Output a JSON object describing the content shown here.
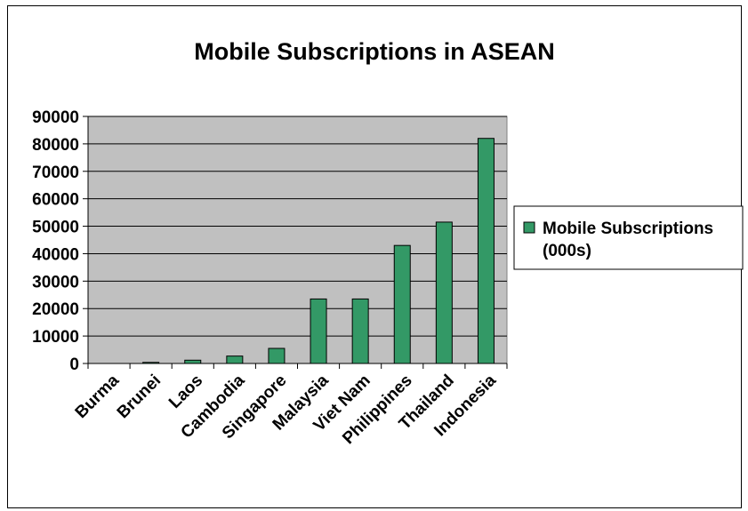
{
  "chart_data": {
    "type": "bar",
    "title": "Mobile Subscriptions in ASEAN",
    "xlabel": "",
    "ylabel": "",
    "ylim": [
      0,
      90000
    ],
    "yticks": [
      0,
      10000,
      20000,
      30000,
      40000,
      50000,
      60000,
      70000,
      80000,
      90000
    ],
    "grid": true,
    "legend_position": "right",
    "categories": [
      "Burma",
      "Brunei",
      "Laos",
      "Cambodia",
      "Singapore",
      "Malaysia",
      "Viet Nam",
      "Philippines",
      "Thailand",
      "Indonesia"
    ],
    "series": [
      {
        "name": "Mobile Subscriptions (000s)",
        "name_lines": [
          "Mobile Subscriptions",
          "(000s)"
        ],
        "color": "#339966",
        "values": [
          0,
          400,
          1200,
          2700,
          5500,
          23500,
          23500,
          43000,
          51500,
          82000
        ]
      }
    ],
    "plot_background": "#c0c0c0"
  }
}
